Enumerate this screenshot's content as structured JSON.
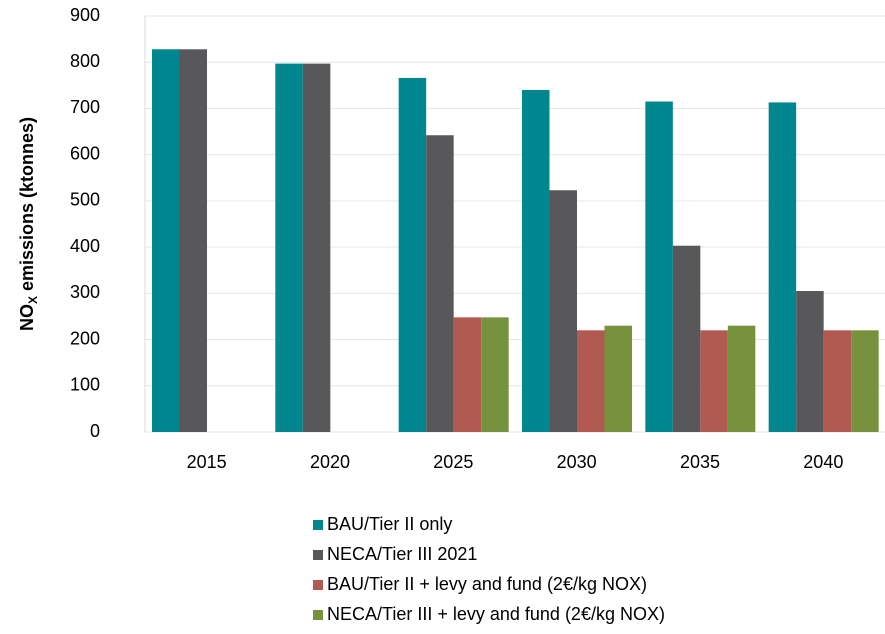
{
  "chart_data": {
    "type": "bar",
    "y_label": [
      "NO",
      "X",
      " emissions (ktonnes)"
    ],
    "categories": [
      "2015",
      "2020",
      "2025",
      "2030",
      "2035",
      "2040"
    ],
    "series": [
      {
        "name": "BAU/Tier II only",
        "color": "#00868f",
        "values": [
          828,
          797,
          766,
          740,
          715,
          713
        ]
      },
      {
        "name": "NECA/Tier III 2021",
        "color": "#58585a",
        "values": [
          828,
          797,
          642,
          523,
          403,
          305
        ]
      },
      {
        "name": "BAU/Tier II + levy and fund (2€/kg NOX)",
        "color": "#b05a52",
        "values": [
          null,
          null,
          248,
          220,
          220,
          220
        ]
      },
      {
        "name": "NECA/Tier III + levy and fund (2€/kg NOX)",
        "color": "#76923c",
        "values": [
          null,
          null,
          248,
          230,
          230,
          220
        ]
      }
    ],
    "ylim": [
      0,
      900
    ],
    "yticks": [
      0,
      100,
      200,
      300,
      400,
      500,
      600,
      700,
      800,
      900
    ],
    "grid": true
  }
}
